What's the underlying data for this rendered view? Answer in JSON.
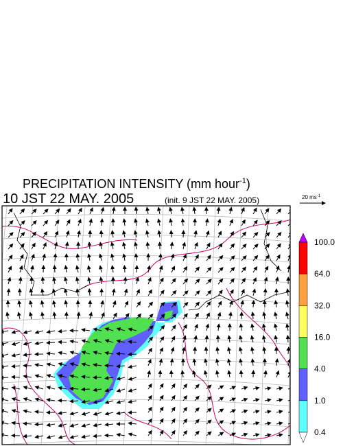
{
  "header": {
    "title_main": "PRECIPITATION INTENSITY (mm hour",
    "title_sup": "-1",
    "title_close": ")",
    "time": "10 JST 22 MAY. 2005",
    "init": "(init. 9 JST 22 MAY. 2005)"
  },
  "scale": {
    "label": "20 ms",
    "label_sup": "-1"
  },
  "colorbar": {
    "levels": [
      "100.0",
      "64.0",
      "32.0",
      "16.0",
      "4.0",
      "1.0",
      "0.4"
    ]
  }
}
